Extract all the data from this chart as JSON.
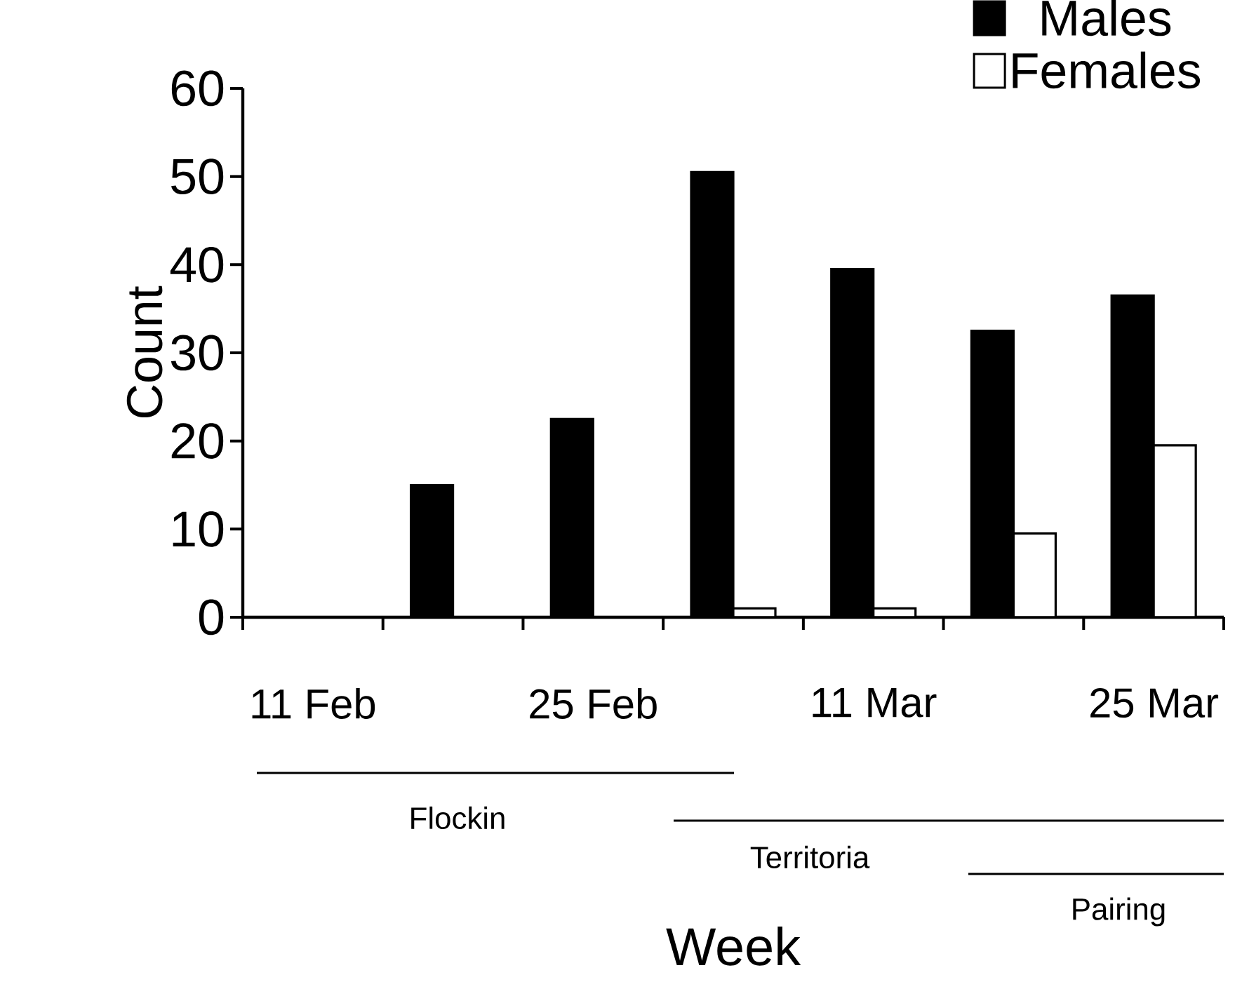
{
  "chart_data": {
    "type": "bar",
    "xlabel": "Week",
    "ylabel": "Count",
    "categories": [
      "11 Feb",
      null,
      "25 Feb",
      null,
      "11 Mar",
      null,
      "25 Mar"
    ],
    "series": [
      {
        "name": "Males",
        "color": "#000000",
        "values": [
          null,
          15,
          22.5,
          50.5,
          39.5,
          32.5,
          36.5
        ]
      },
      {
        "name": "Females",
        "color": "#ffffff",
        "values": [
          null,
          null,
          null,
          1,
          1,
          9.5,
          19.5
        ]
      }
    ],
    "ylim": [
      0,
      60
    ],
    "yticks": [
      0,
      10,
      20,
      30,
      40,
      50,
      60
    ],
    "legend": "top right",
    "grid": false,
    "annotations": [
      "Flockin",
      "Territoria",
      "Pairing"
    ]
  }
}
